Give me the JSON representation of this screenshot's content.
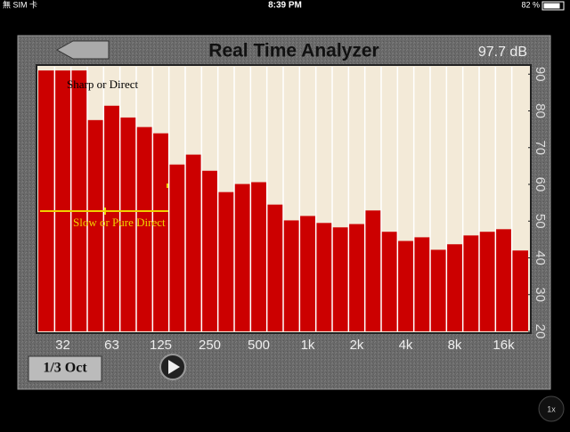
{
  "status_bar": {
    "carrier": "無 SIM 卡",
    "time": "8:39 PM",
    "battery": "82 %"
  },
  "header": {
    "title": "Real Time Analyzer",
    "level": "97.7 dB"
  },
  "controls": {
    "band_mode": "1/3 Oct",
    "speed": "1x"
  },
  "chart_data": {
    "type": "bar",
    "categories": [
      null,
      "32",
      null,
      null,
      "63",
      null,
      null,
      "125",
      null,
      null,
      "250",
      null,
      null,
      "500",
      null,
      null,
      "1k",
      null,
      null,
      "2k",
      null,
      null,
      "4k",
      null,
      null,
      "8k",
      null,
      null,
      "16k",
      null
    ],
    "values": [
      91,
      91,
      91,
      77.5,
      81.4,
      78.2,
      75.6,
      73.9,
      65.4,
      68.1,
      63.7,
      57.9,
      60.1,
      60.6,
      54.5,
      50.2,
      51.4,
      49.5,
      48.3,
      49.2,
      52.9,
      47.1,
      44.6,
      45.6,
      42.2,
      43.7,
      46.1,
      47.1,
      47.8,
      42
    ],
    "color": "#cc0000",
    "ylim": [
      20,
      92
    ],
    "yticks": [
      20,
      30,
      40,
      50,
      60,
      70,
      80,
      90
    ],
    "annotations": [
      "Sharp or Direct",
      "Slow   or Pure Direct"
    ]
  }
}
